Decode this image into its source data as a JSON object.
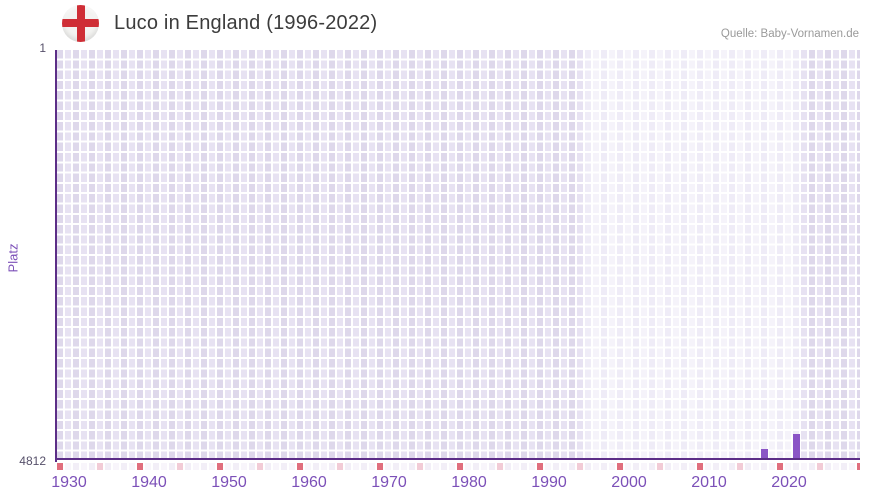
{
  "header": {
    "title": "Luco in England (1996-2022)",
    "source": "Quelle: Baby-Vornamen.de",
    "flag_icon": "england-flag-icon"
  },
  "chart_data": {
    "type": "bar",
    "title": "Luco in England (1996-2022)",
    "xlabel": "",
    "ylabel": "Platz",
    "y_axis": {
      "top_label": "1",
      "bottom_label": "4812",
      "best_rank": 1,
      "worst_rank": 4812,
      "inverted": true,
      "grid": true
    },
    "x_axis": {
      "start_year": 1930,
      "end_year": 2030,
      "tick_labels": [
        1930,
        1940,
        1950,
        1960,
        1970,
        1980,
        1990,
        2000,
        2010,
        2020
      ]
    },
    "highlight_period": {
      "start": 1996,
      "end": 2022
    },
    "series": [
      {
        "name": "Platz",
        "points": [
          {
            "year": 2018,
            "rank": 4700
          },
          {
            "year": 2022,
            "rank": 4520
          }
        ]
      }
    ],
    "decade_marker_years": [
      1930,
      1940,
      1950,
      1960,
      1970,
      1980,
      1990,
      2000,
      2010,
      2020,
      2030
    ],
    "mid_decade_marker_years": [
      1935,
      1945,
      1955,
      1965,
      1975,
      1985,
      1995,
      2005,
      2015,
      2025
    ],
    "legend_position": "none"
  },
  "theme": {
    "bar_color": "#8b55c6",
    "axis_color": "#5c2e87",
    "xtick_color": "#7c50b8",
    "ytick_color": "#56506a",
    "title_color": "#3c3c3c",
    "source_color": "#9a9a9a",
    "grid_a": "#ded8eb",
    "grid_b": "#e7e2f2",
    "hl_a": "#efecf7",
    "hl_b": "#f5f3fa",
    "strip_red": "#e06d7d",
    "strip_pink": "#f2cbd6",
    "strip_pale_a": "#f2eef7",
    "strip_pale_b": "#f8f5fb",
    "flag_red": "#cf2e36",
    "flag_bg": "#f3f3f1"
  }
}
